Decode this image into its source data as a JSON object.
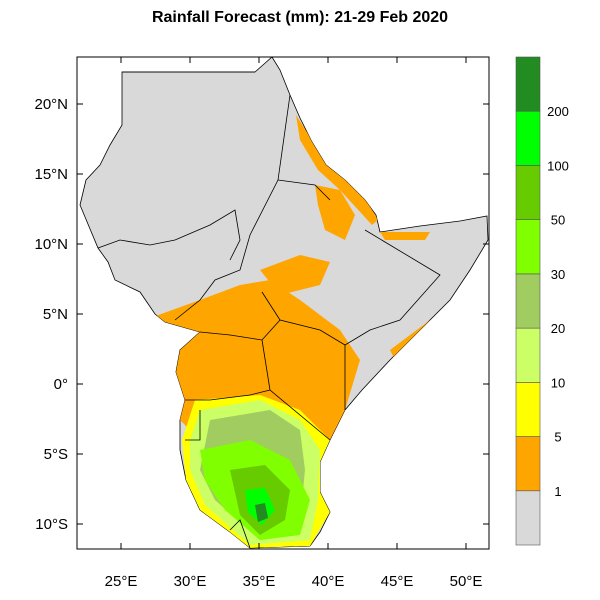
{
  "title": "Rainfall Forecast (mm): 21-29 Feb 2020",
  "map": {
    "lon_ticks": [
      "25°E",
      "30°E",
      "35°E",
      "40°E",
      "45°E",
      "50°E"
    ],
    "lat_ticks": [
      "20°N",
      "15°N",
      "10°N",
      "5°N",
      "0°",
      "5°S",
      "10°S"
    ],
    "land_color": "#D9D9D9",
    "border_color": "#000000"
  },
  "legend": {
    "labels": [
      "1",
      "5",
      "10",
      "20",
      "30",
      "50",
      "100",
      "200"
    ],
    "colors": [
      "#D9D9D9",
      "#FFA500",
      "#FFFF00",
      "#CCFF66",
      "#A0CC60",
      "#80FF00",
      "#66CC00",
      "#00FF00",
      "#228B22"
    ]
  }
}
